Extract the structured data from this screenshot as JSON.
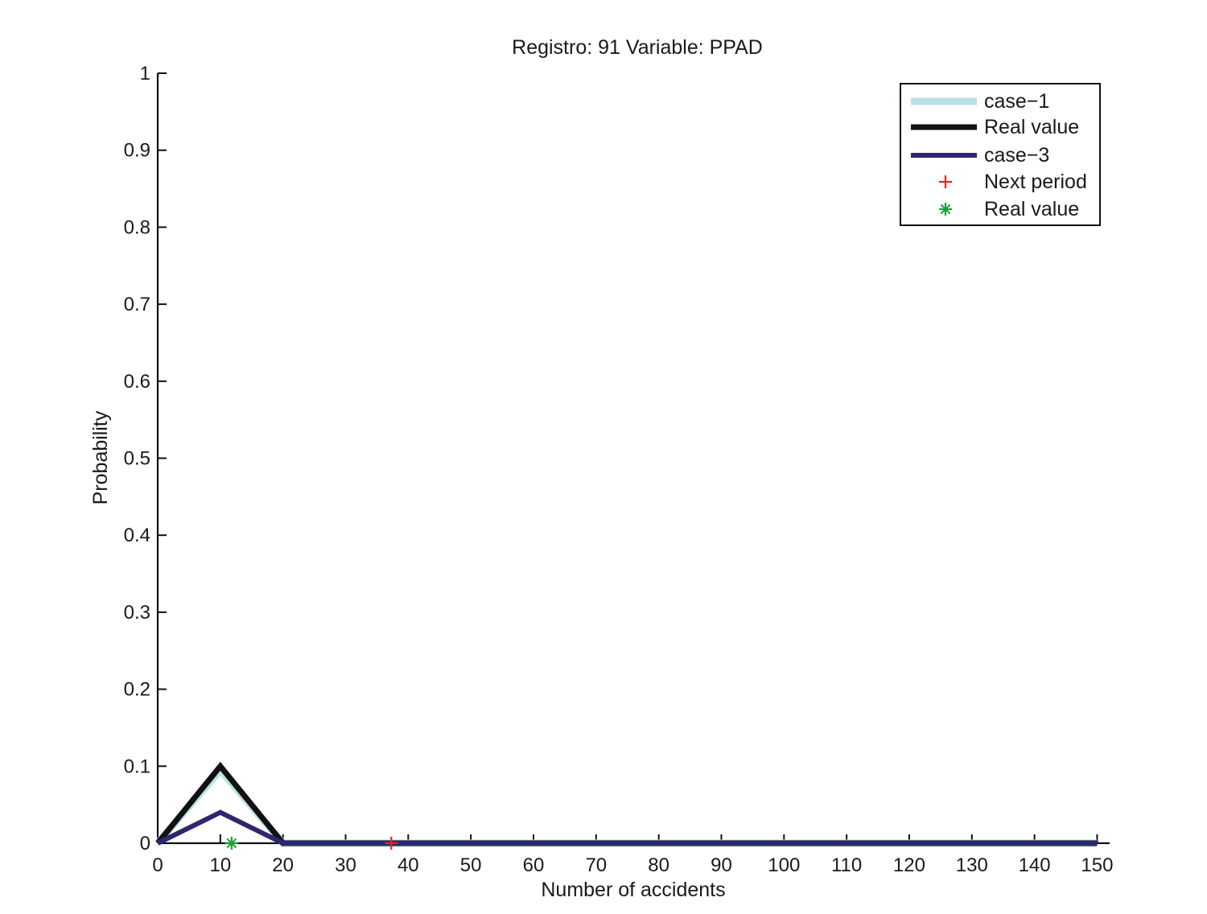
{
  "chart_data": {
    "type": "line",
    "title": "Registro: 91 Variable: PPAD",
    "xlabel": "Number of accidents",
    "ylabel": "Probability",
    "xlim": [
      0,
      152
    ],
    "ylim": [
      0,
      1
    ],
    "x_ticks": [
      0,
      10,
      20,
      30,
      40,
      50,
      60,
      70,
      80,
      90,
      100,
      110,
      120,
      130,
      140,
      150
    ],
    "y_ticks": [
      0,
      0.1,
      0.2,
      0.3,
      0.4,
      0.5,
      0.6,
      0.7,
      0.8,
      0.9,
      1
    ],
    "x_tick_labels": [
      "0",
      "10",
      "20",
      "30",
      "40",
      "50",
      "60",
      "70",
      "80",
      "90",
      "100",
      "110",
      "120",
      "130",
      "140",
      "150"
    ],
    "y_tick_labels": [
      "0",
      "0.1",
      "0.2",
      "0.3",
      "0.4",
      "0.5",
      "0.6",
      "0.7",
      "0.8",
      "0.9",
      "1"
    ],
    "grid": false,
    "legend_position": "top-right",
    "series": [
      {
        "name": "case−1",
        "kind": "line",
        "color": "#b9e1e3",
        "x": [
          0,
          10,
          20,
          30,
          40,
          50,
          60,
          70,
          80,
          90,
          100,
          110,
          120,
          130,
          140,
          150
        ],
        "y": [
          0,
          0.095,
          0,
          0,
          0,
          0,
          0,
          0,
          0,
          0,
          0,
          0,
          0,
          0,
          0,
          0
        ]
      },
      {
        "name": "Real value",
        "kind": "line",
        "color": "#111111",
        "x": [
          0,
          10,
          20,
          30,
          40,
          50,
          60,
          70,
          80,
          90,
          100,
          110,
          120,
          130,
          140,
          150
        ],
        "y": [
          0,
          0.1,
          0,
          0,
          0,
          0,
          0,
          0,
          0,
          0,
          0,
          0,
          0,
          0,
          0,
          0
        ]
      },
      {
        "name": "case−3",
        "kind": "line",
        "color": "#2e2670",
        "x": [
          0,
          10,
          20,
          30,
          40,
          50,
          60,
          70,
          80,
          90,
          100,
          110,
          120,
          130,
          140,
          150
        ],
        "y": [
          0,
          0.04,
          0,
          0,
          0,
          0,
          0,
          0,
          0,
          0,
          0,
          0,
          0,
          0,
          0,
          0
        ]
      },
      {
        "name": "Next period",
        "kind": "marker",
        "marker": "+",
        "color": "#e8202a",
        "x": [
          37.3
        ],
        "y": [
          0
        ]
      },
      {
        "name": "Real value",
        "kind": "marker",
        "marker": "*",
        "color": "#1a9e3a",
        "x": [
          11.8
        ],
        "y": [
          0
        ]
      }
    ]
  }
}
